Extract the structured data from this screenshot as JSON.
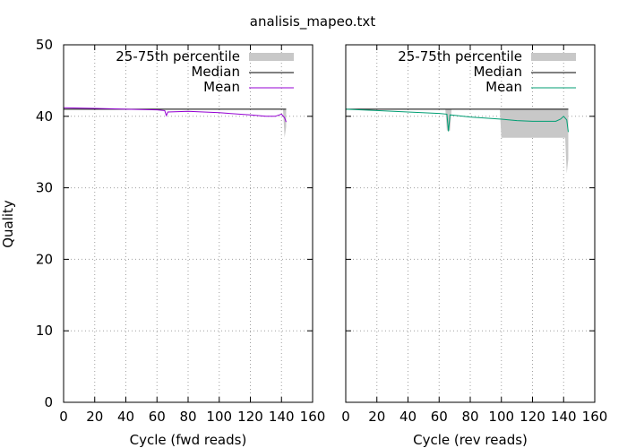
{
  "figure": {
    "title": "analisis_mapeo.txt",
    "ylabel": "Quality"
  },
  "chart_data": [
    {
      "type": "line",
      "panel": "fwd",
      "xlabel": "Cycle (fwd reads)",
      "ylabel": "Quality",
      "xlim": [
        0,
        160
      ],
      "ylim": [
        0,
        50
      ],
      "xticks": [
        0,
        20,
        40,
        60,
        80,
        100,
        120,
        140,
        160
      ],
      "yticks": [
        0,
        10,
        20,
        30,
        40,
        50
      ],
      "grid": true,
      "legend_position": "top-right",
      "legend": [
        "25-75th percentile",
        "Median",
        "Mean"
      ],
      "colors": {
        "band": "#c8c8c8",
        "median": "#000000",
        "mean": "#9400d3"
      },
      "percentile_band": [
        {
          "x": 0,
          "low": 41,
          "high": 41
        },
        {
          "x": 141,
          "low": 41,
          "high": 41
        },
        {
          "x": 142,
          "low": 37,
          "high": 41
        },
        {
          "x": 143,
          "low": 38.5,
          "high": 41
        }
      ],
      "median": [
        {
          "x": 0,
          "y": 41
        },
        {
          "x": 143,
          "y": 41
        }
      ],
      "mean": [
        {
          "x": 0,
          "y": 41.2
        },
        {
          "x": 20,
          "y": 41.1
        },
        {
          "x": 40,
          "y": 41.0
        },
        {
          "x": 60,
          "y": 40.9
        },
        {
          "x": 65,
          "y": 40.8
        },
        {
          "x": 66,
          "y": 40.1
        },
        {
          "x": 67,
          "y": 40.6
        },
        {
          "x": 80,
          "y": 40.7
        },
        {
          "x": 100,
          "y": 40.5
        },
        {
          "x": 120,
          "y": 40.2
        },
        {
          "x": 130,
          "y": 40.0
        },
        {
          "x": 136,
          "y": 40.0
        },
        {
          "x": 140,
          "y": 40.3
        },
        {
          "x": 142,
          "y": 39.8
        },
        {
          "x": 143,
          "y": 39.2
        }
      ]
    },
    {
      "type": "line",
      "panel": "rev",
      "xlabel": "Cycle (rev reads)",
      "ylabel": "",
      "xlim": [
        0,
        160
      ],
      "ylim": [
        0,
        50
      ],
      "xticks": [
        0,
        20,
        40,
        60,
        80,
        100,
        120,
        140,
        160
      ],
      "yticks": [
        0,
        10,
        20,
        30,
        40,
        50
      ],
      "grid": true,
      "legend_position": "top-right",
      "legend": [
        "25-75th percentile",
        "Median",
        "Mean"
      ],
      "colors": {
        "band": "#c8c8c8",
        "median": "#000000",
        "mean": "#009e73"
      },
      "percentile_band": [
        {
          "x": 0,
          "low": 41,
          "high": 41
        },
        {
          "x": 64,
          "low": 41,
          "high": 41
        },
        {
          "x": 65,
          "low": 38,
          "high": 41
        },
        {
          "x": 67,
          "low": 38,
          "high": 41
        },
        {
          "x": 68,
          "low": 41,
          "high": 41
        },
        {
          "x": 99,
          "low": 41,
          "high": 41
        },
        {
          "x": 100,
          "low": 37,
          "high": 41
        },
        {
          "x": 141,
          "low": 37,
          "high": 41
        },
        {
          "x": 142,
          "low": 32,
          "high": 41
        },
        {
          "x": 143,
          "low": 34,
          "high": 41
        }
      ],
      "median": [
        {
          "x": 0,
          "y": 41
        },
        {
          "x": 143,
          "y": 41
        }
      ],
      "mean": [
        {
          "x": 0,
          "y": 41.0
        },
        {
          "x": 20,
          "y": 40.8
        },
        {
          "x": 40,
          "y": 40.6
        },
        {
          "x": 60,
          "y": 40.4
        },
        {
          "x": 65,
          "y": 40.3
        },
        {
          "x": 66,
          "y": 37.9
        },
        {
          "x": 67,
          "y": 40.2
        },
        {
          "x": 80,
          "y": 39.9
        },
        {
          "x": 100,
          "y": 39.6
        },
        {
          "x": 110,
          "y": 39.4
        },
        {
          "x": 120,
          "y": 39.3
        },
        {
          "x": 135,
          "y": 39.3
        },
        {
          "x": 138,
          "y": 39.6
        },
        {
          "x": 140,
          "y": 40.0
        },
        {
          "x": 142,
          "y": 39.5
        },
        {
          "x": 143,
          "y": 37.8
        }
      ]
    }
  ]
}
